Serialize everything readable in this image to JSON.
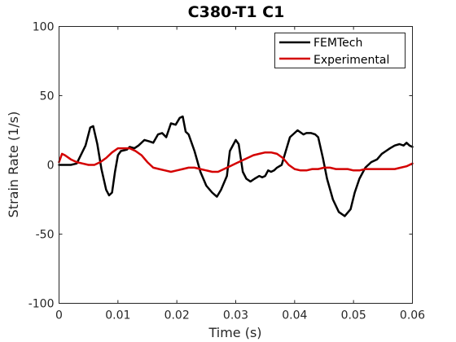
{
  "chart_data": {
    "type": "line",
    "title": "C380-T1 C1",
    "xlabel": "Time (s)",
    "ylabel": "Strain Rate (1/s)",
    "xlim": [
      0,
      0.06
    ],
    "ylim": [
      -100,
      100
    ],
    "xticks": [
      "0",
      "0.01",
      "0.02",
      "0.03",
      "0.04",
      "0.05",
      "0.06"
    ],
    "yticks": [
      "-100",
      "-50",
      "0",
      "50",
      "100"
    ],
    "grid": false,
    "legend_position": "top-right",
    "series": [
      {
        "name": "FEMTech",
        "color": "#000000",
        "x": [
          0,
          0.002,
          0.003,
          0.0045,
          0.0053,
          0.0058,
          0.0065,
          0.0072,
          0.008,
          0.0085,
          0.009,
          0.0095,
          0.01,
          0.0105,
          0.0115,
          0.012,
          0.0128,
          0.0135,
          0.0145,
          0.0153,
          0.016,
          0.0168,
          0.0175,
          0.0182,
          0.019,
          0.0198,
          0.0205,
          0.021,
          0.0215,
          0.022,
          0.023,
          0.024,
          0.025,
          0.026,
          0.0268,
          0.0275,
          0.0285,
          0.029,
          0.03,
          0.0305,
          0.0312,
          0.0318,
          0.0325,
          0.0332,
          0.034,
          0.0345,
          0.035,
          0.0355,
          0.036,
          0.0365,
          0.037,
          0.0378,
          0.0385,
          0.0392,
          0.0405,
          0.0415,
          0.042,
          0.0428,
          0.0435,
          0.044,
          0.0448,
          0.0455,
          0.0465,
          0.0475,
          0.0485,
          0.0495,
          0.0502,
          0.051,
          0.052,
          0.053,
          0.054,
          0.0548,
          0.0555,
          0.0562,
          0.057,
          0.0578,
          0.0585,
          0.059,
          0.0595,
          0.06
        ],
        "values": [
          0,
          0,
          1,
          14,
          27,
          28,
          15,
          -3,
          -18,
          -22,
          -20,
          -5,
          7,
          10,
          11,
          13,
          12,
          14,
          18,
          17,
          16,
          22,
          23,
          20,
          30,
          29,
          34,
          35,
          24,
          22,
          10,
          -5,
          -15,
          -20,
          -23,
          -18,
          -8,
          10,
          18,
          15,
          -5,
          -10,
          -12,
          -10,
          -8,
          -9,
          -8,
          -4,
          -5,
          -4,
          -2,
          0,
          10,
          20,
          25,
          22,
          23,
          23,
          22,
          20,
          5,
          -10,
          -25,
          -34,
          -37,
          -32,
          -20,
          -10,
          -2,
          2,
          4,
          8,
          10,
          12,
          14,
          15,
          14,
          16,
          14,
          13
        ]
      },
      {
        "name": "Experimental",
        "color": "#d40000",
        "x": [
          0,
          0.0005,
          0.001,
          0.002,
          0.003,
          0.004,
          0.005,
          0.006,
          0.007,
          0.008,
          0.009,
          0.01,
          0.011,
          0.012,
          0.013,
          0.014,
          0.015,
          0.016,
          0.017,
          0.018,
          0.019,
          0.02,
          0.021,
          0.022,
          0.023,
          0.024,
          0.025,
          0.026,
          0.027,
          0.028,
          0.029,
          0.03,
          0.031,
          0.032,
          0.033,
          0.034,
          0.035,
          0.036,
          0.037,
          0.038,
          0.039,
          0.04,
          0.041,
          0.042,
          0.043,
          0.044,
          0.045,
          0.046,
          0.047,
          0.048,
          0.049,
          0.05,
          0.051,
          0.052,
          0.053,
          0.054,
          0.055,
          0.056,
          0.057,
          0.058,
          0.059,
          0.06
        ],
        "values": [
          2,
          8,
          7,
          4,
          2,
          1,
          0,
          0,
          2,
          5,
          9,
          12,
          12,
          12,
          10,
          7,
          2,
          -2,
          -3,
          -4,
          -5,
          -4,
          -3,
          -2,
          -2,
          -3,
          -4,
          -5,
          -5,
          -3,
          -1,
          1,
          3,
          5,
          7,
          8,
          9,
          9,
          8,
          5,
          0,
          -3,
          -4,
          -4,
          -3,
          -3,
          -2,
          -2,
          -3,
          -3,
          -3,
          -4,
          -4,
          -3,
          -3,
          -3,
          -3,
          -3,
          -3,
          -2,
          -1,
          1
        ]
      }
    ]
  }
}
